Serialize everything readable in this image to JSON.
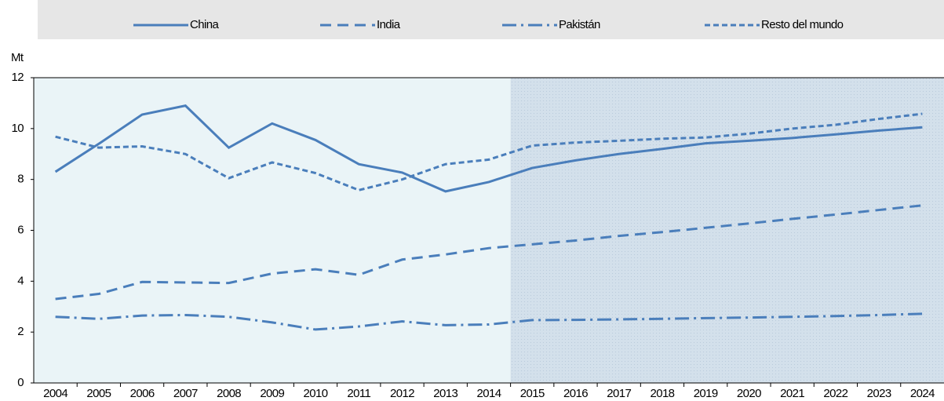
{
  "chart_data": {
    "type": "line",
    "y_label": "Mt",
    "categories": [
      "2004",
      "2005",
      "2006",
      "2007",
      "2008",
      "2009",
      "2010",
      "2011",
      "2012",
      "2013",
      "2014",
      "2015",
      "2016",
      "2017",
      "2018",
      "2019",
      "2020",
      "2021",
      "2022",
      "2023",
      "2024"
    ],
    "series": [
      {
        "name": "China",
        "color": "#4a7ebb",
        "dash": "solid",
        "values": [
          8.3,
          9.4,
          10.55,
          10.9,
          9.25,
          10.2,
          9.55,
          8.6,
          8.27,
          7.53,
          7.9,
          8.45,
          8.75,
          9.0,
          9.2,
          9.42,
          9.52,
          9.63,
          9.77,
          9.92,
          10.05
        ]
      },
      {
        "name": "India",
        "color": "#4a7ebb",
        "dash": "dashed",
        "values": [
          3.3,
          3.5,
          3.97,
          3.95,
          3.93,
          4.3,
          4.47,
          4.25,
          4.85,
          5.05,
          5.3,
          5.45,
          5.6,
          5.78,
          5.93,
          6.1,
          6.27,
          6.45,
          6.62,
          6.8,
          6.98
        ]
      },
      {
        "name": "Pakistán",
        "color": "#4a7ebb",
        "dash": "dashdot",
        "values": [
          2.6,
          2.52,
          2.65,
          2.67,
          2.6,
          2.38,
          2.1,
          2.22,
          2.42,
          2.27,
          2.3,
          2.47,
          2.48,
          2.5,
          2.52,
          2.55,
          2.57,
          2.6,
          2.63,
          2.67,
          2.72
        ]
      },
      {
        "name": "Resto del mundo",
        "color": "#4a7ebb",
        "dash": "dotted",
        "values": [
          9.68,
          9.25,
          9.3,
          9.0,
          8.05,
          8.67,
          8.25,
          7.58,
          8.0,
          8.6,
          8.78,
          9.33,
          9.45,
          9.52,
          9.6,
          9.65,
          9.8,
          10.0,
          10.15,
          10.38,
          10.58
        ]
      }
    ],
    "ylim": [
      0,
      12
    ],
    "yticks": [
      0,
      2,
      4,
      6,
      8,
      10,
      12
    ],
    "grid": false,
    "projection_from": "2015",
    "legend": "top"
  }
}
